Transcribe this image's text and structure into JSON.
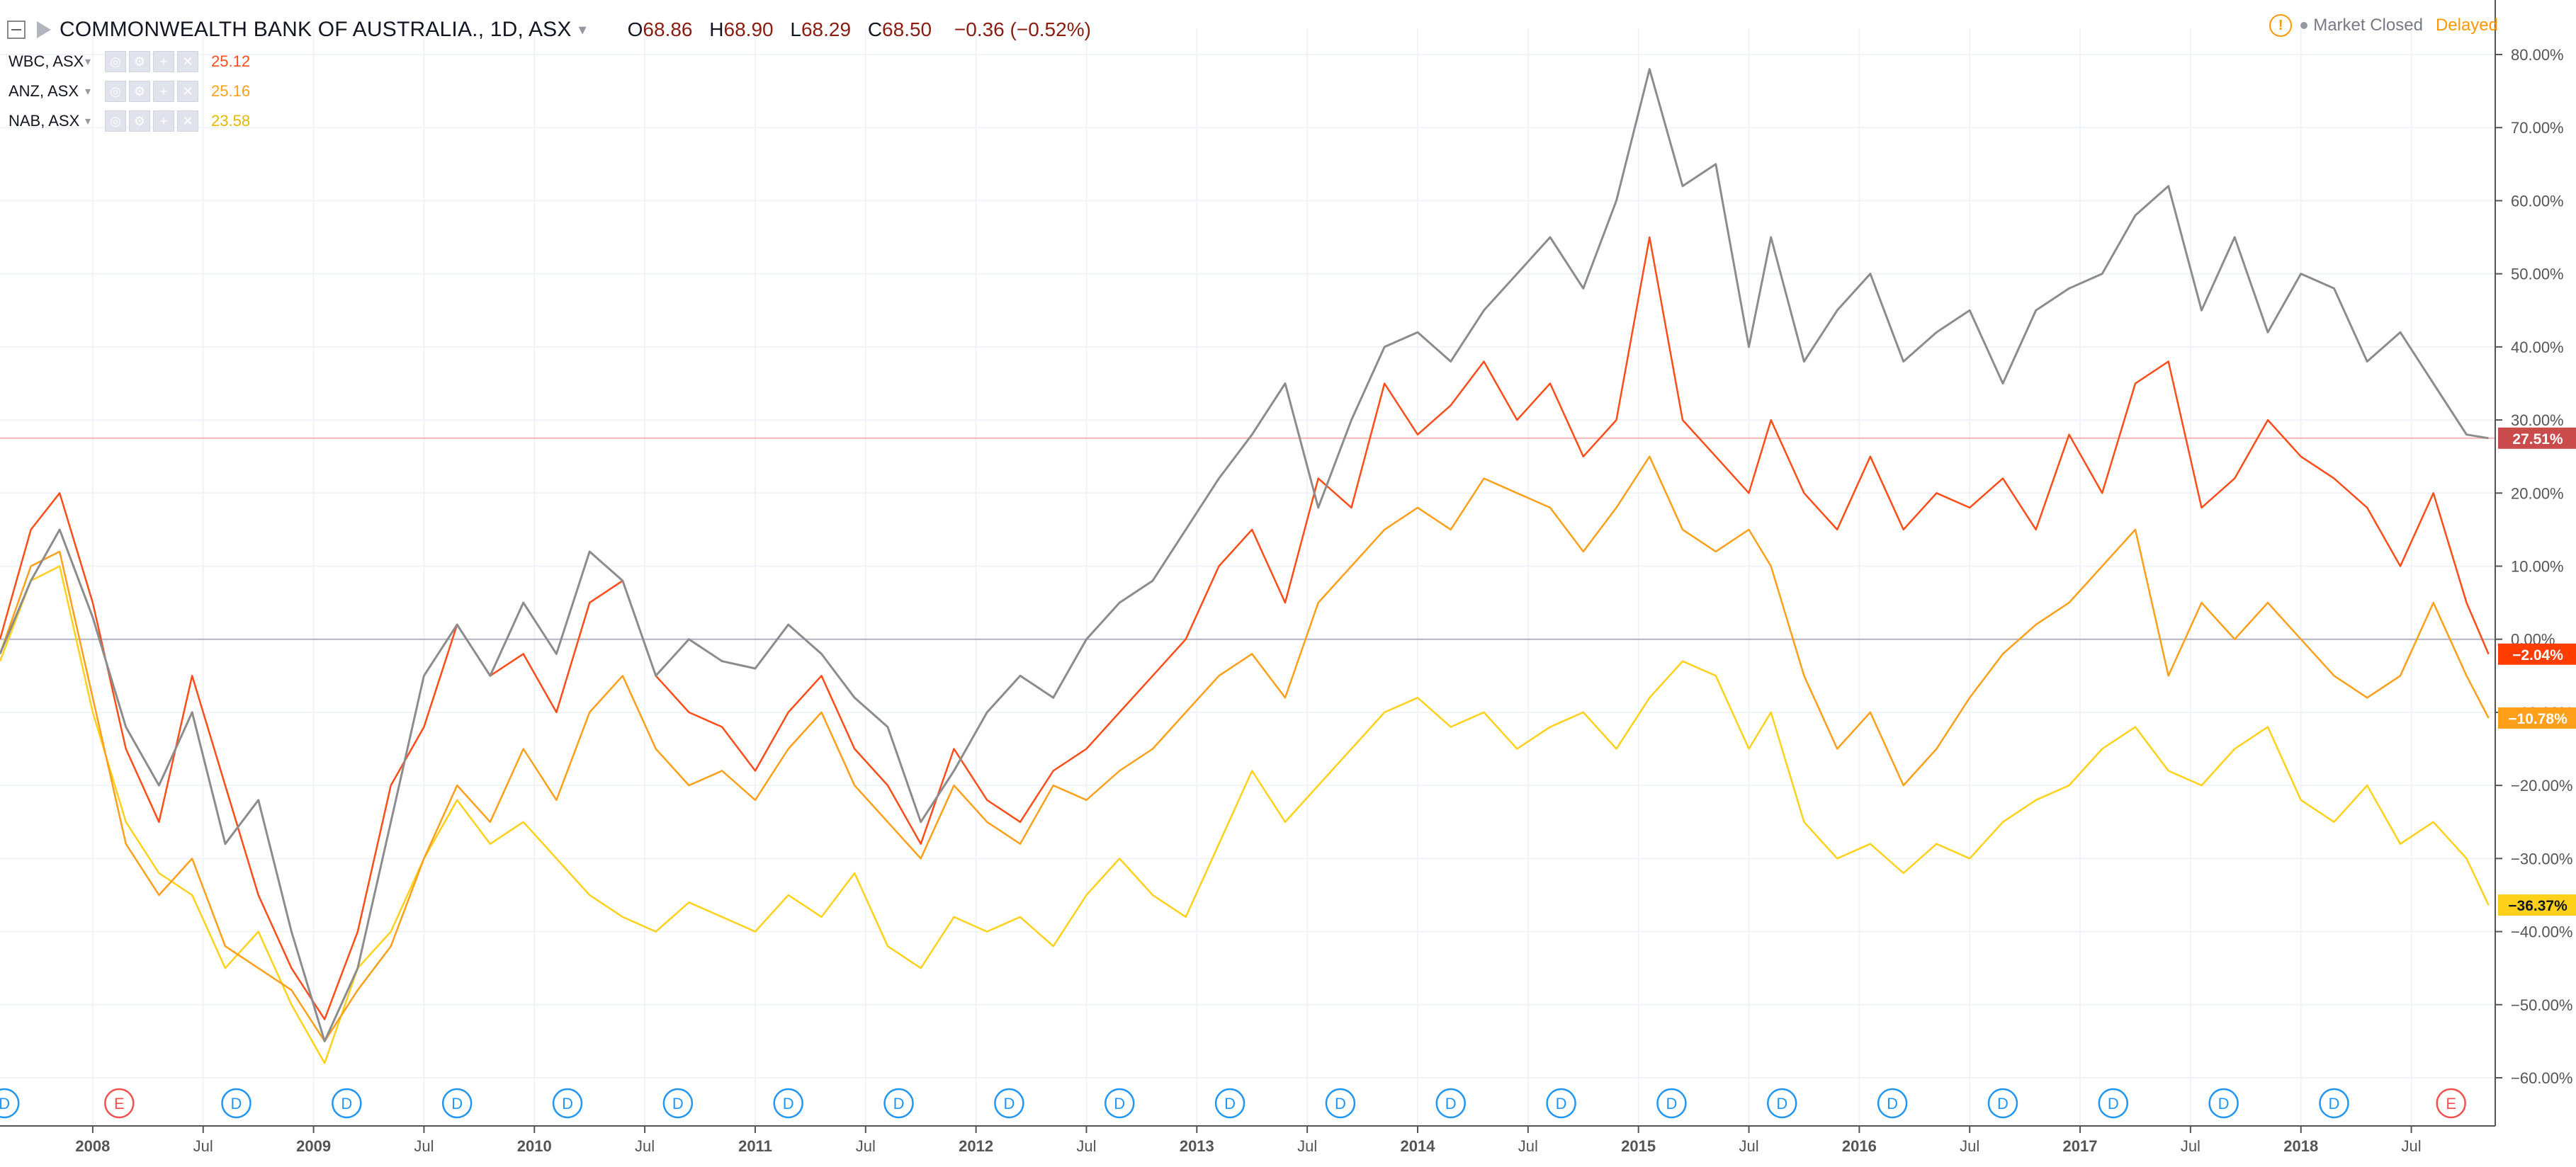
{
  "header": {
    "title": "COMMONWEALTH BANK OF AUSTRALIA., 1D, ASX",
    "ohlc": {
      "o_label": "O",
      "o": "68.86",
      "h_label": "H",
      "h": "68.90",
      "l_label": "L",
      "l": "68.29",
      "c_label": "C",
      "c": "68.50"
    },
    "change": "−0.36 (−0.52%)",
    "market_status": "Market Closed",
    "delayed": "Delayed",
    "warning_glyph": "!"
  },
  "legend": [
    {
      "name": "WBC, ASX",
      "value": "25.12",
      "color": "#ff4d1a"
    },
    {
      "name": "ANZ, ASX",
      "value": "25.16",
      "color": "#ff9f1a"
    },
    {
      "name": "NAB, ASX",
      "value": "23.58",
      "color": "#ffd11a"
    }
  ],
  "legend_buttons": [
    "◎",
    "⚙",
    "+",
    "✕"
  ],
  "colors": {
    "main": "#8c8c8c",
    "wbc": "#ff4d1a",
    "anz": "#ff9f1a",
    "nab": "#ffd11a",
    "wbc_tag": "#ff3d00",
    "main_tag": "#c94b4b"
  },
  "chart_data": {
    "type": "line",
    "title": "COMMONWEALTH BANK OF AUSTRALIA., 1D, ASX",
    "ylabel": "",
    "y_scale": "percent",
    "ylim": [
      -62,
      82
    ],
    "xlim": [
      2007.58,
      2018.88
    ],
    "y_ticks": [
      "80.00%",
      "70.00%",
      "60.00%",
      "50.00%",
      "40.00%",
      "30.00%",
      "20.00%",
      "10.00%",
      "0.00%",
      "−10.00%",
      "−20.00%",
      "−30.00%",
      "−40.00%",
      "−50.00%",
      "−60.00%"
    ],
    "y_tick_values": [
      80,
      70,
      60,
      50,
      40,
      30,
      20,
      10,
      0,
      -10,
      -20,
      -30,
      -40,
      -50,
      -60
    ],
    "x_ticks": [
      {
        "label": "2008",
        "x": 2008.0,
        "bold": true
      },
      {
        "label": "Jul",
        "x": 2008.5
      },
      {
        "label": "2009",
        "x": 2009.0,
        "bold": true
      },
      {
        "label": "Jul",
        "x": 2009.5
      },
      {
        "label": "2010",
        "x": 2010.0,
        "bold": true
      },
      {
        "label": "Jul",
        "x": 2010.5
      },
      {
        "label": "2011",
        "x": 2011.0,
        "bold": true
      },
      {
        "label": "Jul",
        "x": 2011.5
      },
      {
        "label": "2012",
        "x": 2012.0,
        "bold": true
      },
      {
        "label": "Jul",
        "x": 2012.5
      },
      {
        "label": "2013",
        "x": 2013.0,
        "bold": true
      },
      {
        "label": "Jul",
        "x": 2013.5
      },
      {
        "label": "2014",
        "x": 2014.0,
        "bold": true
      },
      {
        "label": "Jul",
        "x": 2014.5
      },
      {
        "label": "2015",
        "x": 2015.0,
        "bold": true
      },
      {
        "label": "Jul",
        "x": 2015.5
      },
      {
        "label": "2016",
        "x": 2016.0,
        "bold": true
      },
      {
        "label": "Jul",
        "x": 2016.5
      },
      {
        "label": "2017",
        "x": 2017.0,
        "bold": true
      },
      {
        "label": "Jul",
        "x": 2017.5
      },
      {
        "label": "2018",
        "x": 2018.0,
        "bold": true
      },
      {
        "label": "Jul",
        "x": 2018.5
      }
    ],
    "series": [
      {
        "name": "COMMONWEALTH BANK OF AUSTRALIA.",
        "color": "#8c8c8c",
        "last_label": "27.51%",
        "last": 27.51,
        "x": [
          2007.58,
          2007.72,
          2007.85,
          2008.0,
          2008.15,
          2008.3,
          2008.45,
          2008.6,
          2008.75,
          2008.9,
          2009.05,
          2009.2,
          2009.35,
          2009.5,
          2009.65,
          2009.8,
          2009.95,
          2010.1,
          2010.25,
          2010.4,
          2010.55,
          2010.7,
          2010.85,
          2011.0,
          2011.15,
          2011.3,
          2011.45,
          2011.6,
          2011.75,
          2011.9,
          2012.05,
          2012.2,
          2012.35,
          2012.5,
          2012.65,
          2012.8,
          2012.95,
          2013.1,
          2013.25,
          2013.4,
          2013.55,
          2013.7,
          2013.85,
          2014.0,
          2014.15,
          2014.3,
          2014.45,
          2014.6,
          2014.75,
          2014.9,
          2015.05,
          2015.2,
          2015.35,
          2015.5,
          2015.6,
          2015.75,
          2015.9,
          2016.05,
          2016.2,
          2016.35,
          2016.5,
          2016.65,
          2016.8,
          2016.95,
          2017.1,
          2017.25,
          2017.4,
          2017.55,
          2017.7,
          2017.85,
          2018.0,
          2018.15,
          2018.3,
          2018.45,
          2018.6,
          2018.75,
          2018.85
        ],
        "y": [
          -2,
          8,
          15,
          3,
          -12,
          -20,
          -10,
          -28,
          -22,
          -40,
          -55,
          -45,
          -25,
          -5,
          2,
          -5,
          5,
          -2,
          12,
          8,
          -5,
          0,
          -3,
          -4,
          2,
          -2,
          -8,
          -12,
          -25,
          -18,
          -10,
          -5,
          -8,
          0,
          5,
          8,
          15,
          22,
          28,
          35,
          18,
          30,
          40,
          42,
          38,
          45,
          50,
          55,
          48,
          60,
          78,
          62,
          65,
          40,
          55,
          38,
          45,
          50,
          38,
          42,
          45,
          35,
          45,
          48,
          50,
          58,
          62,
          45,
          55,
          42,
          50,
          48,
          38,
          42,
          35,
          28,
          27.51
        ]
      },
      {
        "name": "WBC, ASX",
        "color": "#ff4d1a",
        "last_label": "−2.04%",
        "last": -2.04,
        "x": [
          2007.58,
          2007.72,
          2007.85,
          2008.0,
          2008.15,
          2008.3,
          2008.45,
          2008.6,
          2008.75,
          2008.9,
          2009.05,
          2009.2,
          2009.35,
          2009.5,
          2009.65,
          2009.8,
          2009.95,
          2010.1,
          2010.25,
          2010.4,
          2010.55,
          2010.7,
          2010.85,
          2011.0,
          2011.15,
          2011.3,
          2011.45,
          2011.6,
          2011.75,
          2011.9,
          2012.05,
          2012.2,
          2012.35,
          2012.5,
          2012.65,
          2012.8,
          2012.95,
          2013.1,
          2013.25,
          2013.4,
          2013.55,
          2013.7,
          2013.85,
          2014.0,
          2014.15,
          2014.3,
          2014.45,
          2014.6,
          2014.75,
          2014.9,
          2015.05,
          2015.2,
          2015.35,
          2015.5,
          2015.6,
          2015.75,
          2015.9,
          2016.05,
          2016.2,
          2016.35,
          2016.5,
          2016.65,
          2016.8,
          2016.95,
          2017.1,
          2017.25,
          2017.4,
          2017.55,
          2017.7,
          2017.85,
          2018.0,
          2018.15,
          2018.3,
          2018.45,
          2018.6,
          2018.75,
          2018.85
        ],
        "y": [
          0,
          15,
          20,
          5,
          -15,
          -25,
          -5,
          -20,
          -35,
          -45,
          -52,
          -40,
          -20,
          -12,
          2,
          -5,
          -2,
          -10,
          5,
          8,
          -5,
          -10,
          -12,
          -18,
          -10,
          -5,
          -15,
          -20,
          -28,
          -15,
          -22,
          -25,
          -18,
          -15,
          -10,
          -5,
          0,
          10,
          15,
          5,
          22,
          18,
          35,
          28,
          32,
          38,
          30,
          35,
          25,
          30,
          55,
          30,
          25,
          20,
          30,
          20,
          15,
          25,
          15,
          20,
          18,
          22,
          15,
          28,
          20,
          35,
          38,
          18,
          22,
          30,
          25,
          22,
          18,
          10,
          20,
          5,
          -2.04
        ]
      },
      {
        "name": "ANZ, ASX",
        "color": "#ff9f1a",
        "last_label": "−10.78%",
        "last": -10.78,
        "x": [
          2007.58,
          2007.72,
          2007.85,
          2008.0,
          2008.15,
          2008.3,
          2008.45,
          2008.6,
          2008.75,
          2008.9,
          2009.05,
          2009.2,
          2009.35,
          2009.5,
          2009.65,
          2009.8,
          2009.95,
          2010.1,
          2010.25,
          2010.4,
          2010.55,
          2010.7,
          2010.85,
          2011.0,
          2011.15,
          2011.3,
          2011.45,
          2011.6,
          2011.75,
          2011.9,
          2012.05,
          2012.2,
          2012.35,
          2012.5,
          2012.65,
          2012.8,
          2012.95,
          2013.1,
          2013.25,
          2013.4,
          2013.55,
          2013.7,
          2013.85,
          2014.0,
          2014.15,
          2014.3,
          2014.45,
          2014.6,
          2014.75,
          2014.9,
          2015.05,
          2015.2,
          2015.35,
          2015.5,
          2015.6,
          2015.75,
          2015.9,
          2016.05,
          2016.2,
          2016.35,
          2016.5,
          2016.65,
          2016.8,
          2016.95,
          2017.1,
          2017.25,
          2017.4,
          2017.55,
          2017.7,
          2017.85,
          2018.0,
          2018.15,
          2018.3,
          2018.45,
          2018.6,
          2018.75,
          2018.85
        ],
        "y": [
          -2,
          10,
          12,
          -8,
          -28,
          -35,
          -30,
          -42,
          -45,
          -48,
          -55,
          -48,
          -42,
          -30,
          -20,
          -25,
          -15,
          -22,
          -10,
          -5,
          -15,
          -20,
          -18,
          -22,
          -15,
          -10,
          -20,
          -25,
          -30,
          -20,
          -25,
          -28,
          -20,
          -22,
          -18,
          -15,
          -10,
          -5,
          -2,
          -8,
          5,
          10,
          15,
          18,
          15,
          22,
          20,
          18,
          12,
          18,
          25,
          15,
          12,
          15,
          10,
          -5,
          -15,
          -10,
          -20,
          -15,
          -8,
          -2,
          2,
          5,
          10,
          15,
          -5,
          5,
          0,
          5,
          0,
          -5,
          -8,
          -5,
          5,
          -5,
          -10.78
        ]
      },
      {
        "name": "NAB, ASX",
        "color": "#ffd11a",
        "last_label": "−36.37%",
        "last": -36.37,
        "x": [
          2007.58,
          2007.72,
          2007.85,
          2008.0,
          2008.15,
          2008.3,
          2008.45,
          2008.6,
          2008.75,
          2008.9,
          2009.05,
          2009.2,
          2009.35,
          2009.5,
          2009.65,
          2009.8,
          2009.95,
          2010.1,
          2010.25,
          2010.4,
          2010.55,
          2010.7,
          2010.85,
          2011.0,
          2011.15,
          2011.3,
          2011.45,
          2011.6,
          2011.75,
          2011.9,
          2012.05,
          2012.2,
          2012.35,
          2012.5,
          2012.65,
          2012.8,
          2012.95,
          2013.1,
          2013.25,
          2013.4,
          2013.55,
          2013.7,
          2013.85,
          2014.0,
          2014.15,
          2014.3,
          2014.45,
          2014.6,
          2014.75,
          2014.9,
          2015.05,
          2015.2,
          2015.35,
          2015.5,
          2015.6,
          2015.75,
          2015.9,
          2016.05,
          2016.2,
          2016.35,
          2016.5,
          2016.65,
          2016.8,
          2016.95,
          2017.1,
          2017.25,
          2017.4,
          2017.55,
          2017.7,
          2017.85,
          2018.0,
          2018.15,
          2018.3,
          2018.45,
          2018.6,
          2018.75,
          2018.85
        ],
        "y": [
          -3,
          8,
          10,
          -10,
          -25,
          -32,
          -35,
          -45,
          -40,
          -50,
          -58,
          -45,
          -40,
          -30,
          -22,
          -28,
          -25,
          -30,
          -35,
          -38,
          -40,
          -36,
          -38,
          -40,
          -35,
          -38,
          -32,
          -42,
          -45,
          -38,
          -40,
          -38,
          -42,
          -35,
          -30,
          -35,
          -38,
          -28,
          -18,
          -25,
          -20,
          -15,
          -10,
          -8,
          -12,
          -10,
          -15,
          -12,
          -10,
          -15,
          -8,
          -3,
          -5,
          -15,
          -10,
          -25,
          -30,
          -28,
          -32,
          -28,
          -30,
          -25,
          -22,
          -20,
          -15,
          -12,
          -18,
          -20,
          -15,
          -12,
          -22,
          -25,
          -20,
          -28,
          -25,
          -30,
          -36.37
        ]
      }
    ],
    "zero_line": 0,
    "events": [
      {
        "type": "D",
        "x": 2007.6
      },
      {
        "type": "E",
        "x": 2008.12
      },
      {
        "type": "D",
        "x": 2008.65
      },
      {
        "type": "D",
        "x": 2009.15
      },
      {
        "type": "D",
        "x": 2009.65
      },
      {
        "type": "D",
        "x": 2010.15
      },
      {
        "type": "D",
        "x": 2010.65
      },
      {
        "type": "D",
        "x": 2011.15
      },
      {
        "type": "D",
        "x": 2011.65
      },
      {
        "type": "D",
        "x": 2012.15
      },
      {
        "type": "D",
        "x": 2012.65
      },
      {
        "type": "D",
        "x": 2013.15
      },
      {
        "type": "D",
        "x": 2013.65
      },
      {
        "type": "D",
        "x": 2014.15
      },
      {
        "type": "D",
        "x": 2014.65
      },
      {
        "type": "D",
        "x": 2015.15
      },
      {
        "type": "D",
        "x": 2015.65
      },
      {
        "type": "D",
        "x": 2016.15
      },
      {
        "type": "D",
        "x": 2016.65
      },
      {
        "type": "D",
        "x": 2017.15
      },
      {
        "type": "D",
        "x": 2017.65
      },
      {
        "type": "D",
        "x": 2018.15
      },
      {
        "type": "E",
        "x": 2018.68
      }
    ]
  }
}
